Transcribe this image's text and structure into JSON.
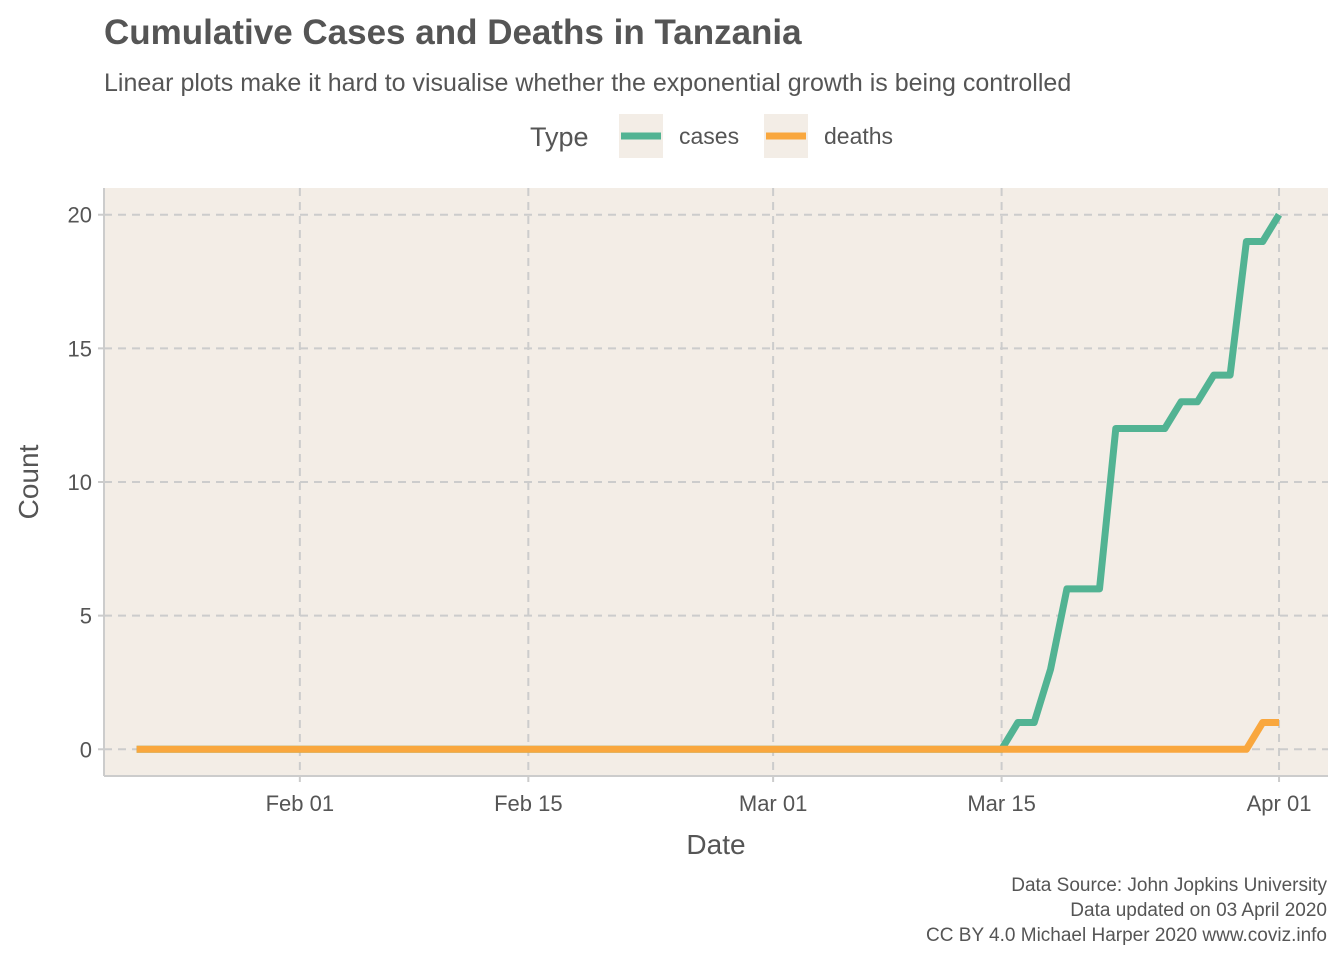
{
  "chart_data": {
    "type": "line",
    "title": "Cumulative Cases and Deaths in Tanzania",
    "subtitle": "Linear plots make it hard to visualise whether the exponential growth is being controlled",
    "xlabel": "Date",
    "ylabel": "Count",
    "legend": {
      "title": "Type",
      "placement": "top"
    },
    "x_ticks": [
      {
        "date": "2020-02-01",
        "label": "Feb 01"
      },
      {
        "date": "2020-02-15",
        "label": "Feb 15"
      },
      {
        "date": "2020-03-01",
        "label": "Mar 01"
      },
      {
        "date": "2020-03-15",
        "label": "Mar 15"
      },
      {
        "date": "2020-04-01",
        "label": "Apr 01"
      }
    ],
    "xlim": [
      "2020-01-20",
      "2020-04-04"
    ],
    "ylim": [
      -1,
      21
    ],
    "y_ticks": [
      0,
      5,
      10,
      15,
      20
    ],
    "grid": true,
    "series": [
      {
        "name": "cases",
        "color": "#52b393",
        "points": [
          [
            "2020-01-22",
            0
          ],
          [
            "2020-03-15",
            0
          ],
          [
            "2020-03-16",
            1
          ],
          [
            "2020-03-17",
            1
          ],
          [
            "2020-03-18",
            3
          ],
          [
            "2020-03-19",
            6
          ],
          [
            "2020-03-20",
            6
          ],
          [
            "2020-03-21",
            6
          ],
          [
            "2020-03-22",
            12
          ],
          [
            "2020-03-23",
            12
          ],
          [
            "2020-03-24",
            12
          ],
          [
            "2020-03-25",
            12
          ],
          [
            "2020-03-26",
            13
          ],
          [
            "2020-03-27",
            13
          ],
          [
            "2020-03-28",
            14
          ],
          [
            "2020-03-29",
            14
          ],
          [
            "2020-03-30",
            19
          ],
          [
            "2020-03-31",
            19
          ],
          [
            "2020-04-01",
            20
          ]
        ]
      },
      {
        "name": "deaths",
        "color": "#f9a73e",
        "points": [
          [
            "2020-01-22",
            0
          ],
          [
            "2020-03-30",
            0
          ],
          [
            "2020-03-31",
            1
          ],
          [
            "2020-04-01",
            1
          ]
        ]
      }
    ],
    "caption": [
      "Data Source: John Jopkins University",
      "Data updated on 03 April 2020",
      "CC BY 4.0 Michael Harper 2020 www.coviz.info"
    ]
  }
}
